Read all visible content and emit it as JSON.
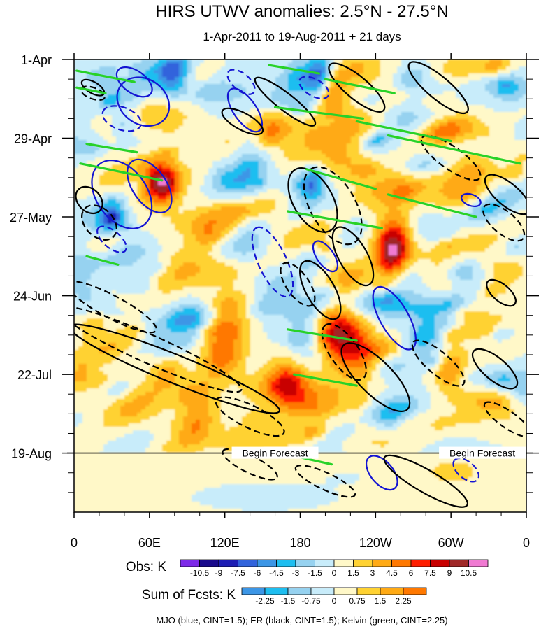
{
  "chart_data": {
    "type": "heatmap",
    "title": "HIRS UTWV anomalies: 2.5°N - 27.5°N",
    "subtitle": "1-Apr-2011 to 19-Aug-2011 + 21 days",
    "x_ticks": [
      "0",
      "60E",
      "120E",
      "180",
      "120W",
      "60W",
      "0"
    ],
    "x_tick_lon": [
      0,
      60,
      120,
      180,
      240,
      300,
      360
    ],
    "xlim": [
      0,
      360
    ],
    "y_ticks": [
      "1-Apr",
      "29-Apr",
      "27-May",
      "24-Jun",
      "22-Jul",
      "19-Aug"
    ],
    "y_tick_day": [
      0,
      28,
      56,
      84,
      112,
      140
    ],
    "ylim_days": [
      0,
      161
    ],
    "forecast_start_day": 140,
    "forecast_labels": [
      "Begin Forecast",
      "Begin Forecast"
    ],
    "forecast_label_lon": [
      160,
      325
    ],
    "obs_colorbar": {
      "label": "Obs: K",
      "levels": [
        "-10.5",
        "-9",
        "-7.5",
        "-6",
        "-4.5",
        "-3",
        "-1.5",
        "0",
        "1.5",
        "3",
        "4.5",
        "6",
        "7.5",
        "9",
        "10.5"
      ],
      "colors": [
        "#7d2ae8",
        "#1a0a8c",
        "#1e1eb4",
        "#3264dc",
        "#3c96e6",
        "#1ebef0",
        "#96d2f0",
        "#c8ecfa",
        "#fff8c8",
        "#ffd232",
        "#ffaa14",
        "#ff7800",
        "#ff1e00",
        "#c80000",
        "#a02828",
        "#f07ad2"
      ]
    },
    "fcst_colorbar": {
      "label": "Sum of Fcsts: K",
      "levels": [
        "-2.25",
        "-1.5",
        "-0.75",
        "0",
        "0.75",
        "1.5",
        "2.25"
      ],
      "colors": [
        "#3c96e6",
        "#1ebef0",
        "#96d2f0",
        "#c8ecfa",
        "#fff8c8",
        "#ffd232",
        "#ffaa14",
        "#ff7800"
      ]
    },
    "contour_note": "MJO (blue, CINT=1.5); ER (black, CINT=1.5); Kelvin (green, CINT=2.25)",
    "series": [
      {
        "name": "MJO",
        "color": "#1414d2",
        "contours": [
          {
            "lon": 48,
            "day": 8,
            "rlon": 16,
            "rday": 4,
            "rot": 35,
            "sign": 1
          },
          {
            "lon": 55,
            "day": 15,
            "rlon": 22,
            "rday": 8,
            "rot": 35,
            "sign": 1
          },
          {
            "lon": 38,
            "day": 21,
            "rlon": 16,
            "rday": 4,
            "rot": 20,
            "sign": -1
          },
          {
            "lon": 38,
            "day": 48,
            "rlon": 30,
            "rday": 9,
            "rot": 55,
            "sign": 1
          },
          {
            "lon": 60,
            "day": 45,
            "rlon": 24,
            "rday": 6,
            "rot": 55,
            "sign": 1
          },
          {
            "lon": 30,
            "day": 64,
            "rlon": 14,
            "rday": 3,
            "rot": 40,
            "sign": -1
          },
          {
            "lon": 136,
            "day": 18,
            "rlon": 20,
            "rday": 4,
            "rot": 55,
            "sign": 1
          },
          {
            "lon": 133,
            "day": 8,
            "rlon": 13,
            "rday": 3,
            "rot": 40,
            "sign": -1
          },
          {
            "lon": 158,
            "day": 72,
            "rlon": 30,
            "rday": 5,
            "rot": 65,
            "sign": -1
          },
          {
            "lon": 200,
            "day": 70,
            "rlon": 14,
            "rday": 3,
            "rot": 55,
            "sign": 1
          },
          {
            "lon": 191,
            "day": 10,
            "rlon": 13,
            "rday": 3,
            "rot": 30,
            "sign": -1
          },
          {
            "lon": 255,
            "day": 92,
            "rlon": 28,
            "rday": 5,
            "rot": 60,
            "sign": 1
          },
          {
            "lon": 245,
            "day": 147,
            "rlon": 16,
            "rday": 4,
            "rot": 50,
            "sign": 1
          },
          {
            "lon": 312,
            "day": 146,
            "rlon": 12,
            "rday": 3,
            "rot": 40,
            "sign": -1
          },
          {
            "lon": 316,
            "day": 50,
            "rlon": 8,
            "rday": 2,
            "rot": 20,
            "sign": 1
          }
        ]
      },
      {
        "name": "ER",
        "color": "#000000",
        "contours": [
          {
            "lon": 15,
            "day": 12,
            "rlon": 10,
            "rday": 2,
            "rot": 20,
            "sign": -1
          },
          {
            "lon": 12,
            "day": 50,
            "rlon": 12,
            "rday": 4,
            "rot": 45,
            "sign": 1
          },
          {
            "lon": 20,
            "day": 58,
            "rlon": 16,
            "rday": 5,
            "rot": 45,
            "sign": -1
          },
          {
            "lon": 60,
            "day": 103,
            "rlon": 80,
            "rday": 5,
            "rot": 24,
            "sign": -1
          },
          {
            "lon": 80,
            "day": 110,
            "rlon": 90,
            "rday": 5,
            "rot": 22,
            "sign": 1
          },
          {
            "lon": 30,
            "day": 88,
            "rlon": 40,
            "rday": 4,
            "rot": 28,
            "sign": -1
          },
          {
            "lon": 140,
            "day": 127,
            "rlon": 30,
            "rday": 4,
            "rot": 26,
            "sign": -1
          },
          {
            "lon": 140,
            "day": 144,
            "rlon": 24,
            "rday": 3,
            "rot": 26,
            "sign": -1
          },
          {
            "lon": 134,
            "day": 22,
            "rlon": 18,
            "rday": 3,
            "rot": 28,
            "sign": 1
          },
          {
            "lon": 168,
            "day": 15,
            "rlon": 30,
            "rday": 3,
            "rot": 38,
            "sign": 1
          },
          {
            "lon": 190,
            "day": 50,
            "rlon": 28,
            "rday": 7,
            "rot": 60,
            "sign": 1
          },
          {
            "lon": 206,
            "day": 52,
            "rlon": 34,
            "rday": 8,
            "rot": 60,
            "sign": -1
          },
          {
            "lon": 196,
            "day": 82,
            "rlon": 26,
            "rday": 5,
            "rot": 60,
            "sign": 1
          },
          {
            "lon": 222,
            "day": 70,
            "rlon": 26,
            "rday": 5,
            "rot": 60,
            "sign": 1
          },
          {
            "lon": 178,
            "day": 80,
            "rlon": 20,
            "rday": 4,
            "rot": 55,
            "sign": -1
          },
          {
            "lon": 215,
            "day": 104,
            "rlon": 26,
            "rday": 5,
            "rot": 55,
            "sign": -1
          },
          {
            "lon": 240,
            "day": 113,
            "rlon": 36,
            "rday": 6,
            "rot": 45,
            "sign": 1
          },
          {
            "lon": 200,
            "day": 150,
            "rlon": 26,
            "rday": 3,
            "rot": 25,
            "sign": -1
          },
          {
            "lon": 280,
            "day": 150,
            "rlon": 38,
            "rday": 4,
            "rot": 30,
            "sign": 1
          },
          {
            "lon": 225,
            "day": 10,
            "rlon": 28,
            "rday": 4,
            "rot": 40,
            "sign": 1
          },
          {
            "lon": 290,
            "day": 10,
            "rlon": 30,
            "rday": 4,
            "rot": 40,
            "sign": 1
          },
          {
            "lon": 300,
            "day": 35,
            "rlon": 28,
            "rday": 4,
            "rot": 35,
            "sign": -1
          },
          {
            "lon": 345,
            "day": 48,
            "rlon": 22,
            "rday": 4,
            "rot": 40,
            "sign": 1
          },
          {
            "lon": 342,
            "day": 58,
            "rlon": 20,
            "rday": 4,
            "rot": 40,
            "sign": -1
          },
          {
            "lon": 290,
            "day": 108,
            "rlon": 26,
            "rday": 4,
            "rot": 40,
            "sign": -1
          },
          {
            "lon": 335,
            "day": 110,
            "rlon": 22,
            "rday": 4,
            "rot": 40,
            "sign": 1
          },
          {
            "lon": 345,
            "day": 128,
            "rlon": 22,
            "rday": 3,
            "rot": 35,
            "sign": -1
          },
          {
            "lon": 340,
            "day": 83,
            "rlon": 14,
            "rday": 3,
            "rot": 40,
            "sign": 1
          },
          {
            "lon": 15,
            "day": 10,
            "rlon": 10,
            "rday": 2,
            "rot": 30,
            "sign": 1
          }
        ]
      },
      {
        "name": "Kelvin",
        "color": "#28d228",
        "lines": [
          {
            "lon1": 2,
            "day1": 4,
            "lon2": 48,
            "day2": 8
          },
          {
            "lon1": 2,
            "day1": 10,
            "lon2": 25,
            "day2": 12
          },
          {
            "lon1": 10,
            "day1": 30,
            "lon2": 50,
            "day2": 33
          },
          {
            "lon1": 5,
            "day1": 37,
            "lon2": 70,
            "day2": 43
          },
          {
            "lon1": 10,
            "day1": 70,
            "lon2": 35,
            "day2": 73
          },
          {
            "lon1": 155,
            "day1": 2,
            "lon2": 195,
            "day2": 5
          },
          {
            "lon1": 200,
            "day1": 7,
            "lon2": 255,
            "day2": 12
          },
          {
            "lon1": 160,
            "day1": 17,
            "lon2": 230,
            "day2": 21
          },
          {
            "lon1": 225,
            "day1": 22,
            "lon2": 300,
            "day2": 29
          },
          {
            "lon1": 250,
            "day1": 27,
            "lon2": 355,
            "day2": 37
          },
          {
            "lon1": 185,
            "day1": 39,
            "lon2": 240,
            "day2": 46
          },
          {
            "lon1": 250,
            "day1": 48,
            "lon2": 320,
            "day2": 56
          },
          {
            "lon1": 170,
            "day1": 54,
            "lon2": 245,
            "day2": 60
          },
          {
            "lon1": 170,
            "day1": 96,
            "lon2": 225,
            "day2": 100
          },
          {
            "lon1": 175,
            "day1": 112,
            "lon2": 225,
            "day2": 116
          },
          {
            "lon1": 175,
            "day1": 141,
            "lon2": 205,
            "day2": 144
          }
        ]
      }
    ]
  }
}
